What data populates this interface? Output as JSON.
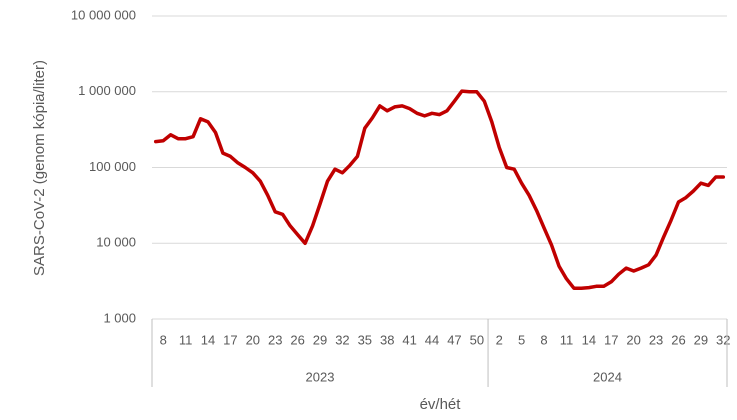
{
  "chart_data": {
    "type": "line",
    "y_label": "SARS-CoV-2 (genom kópia/liter)",
    "x_label": "év/hét",
    "log_scale": true,
    "grid": true,
    "ylim": [
      1000,
      10000000
    ],
    "yticks": [
      {
        "value": 1000,
        "label": "1 000"
      },
      {
        "value": 10000,
        "label": "10 000"
      },
      {
        "value": 100000,
        "label": "100 000"
      },
      {
        "value": 1000000,
        "label": "1 000 000"
      },
      {
        "value": 10000000,
        "label": "10 000 000"
      }
    ],
    "groups": [
      {
        "name": "2023",
        "span": 45
      },
      {
        "name": "2024",
        "span": 32
      }
    ],
    "categories": [
      null,
      "8",
      null,
      null,
      "11",
      null,
      null,
      "14",
      null,
      null,
      "17",
      null,
      null,
      "20",
      null,
      null,
      "23",
      null,
      null,
      "26",
      null,
      null,
      "29",
      null,
      null,
      "32",
      null,
      null,
      "35",
      null,
      null,
      "38",
      null,
      null,
      "41",
      null,
      null,
      "44",
      null,
      null,
      "47",
      null,
      null,
      "50",
      null,
      null,
      "2",
      null,
      null,
      "5",
      null,
      null,
      "8",
      null,
      null,
      "11",
      null,
      null,
      "14",
      null,
      null,
      "17",
      null,
      null,
      "20",
      null,
      null,
      "23",
      null,
      null,
      "26",
      null,
      null,
      "29",
      null,
      null,
      "32"
    ],
    "series": [
      {
        "name": "SARS-CoV-2",
        "color": "#c00000",
        "values": [
          220000,
          225000,
          270000,
          240000,
          240000,
          255000,
          440000,
          400000,
          290000,
          155000,
          140000,
          115000,
          100000,
          85000,
          66000,
          43000,
          26000,
          24000,
          17000,
          13000,
          10000,
          17000,
          33000,
          66000,
          95000,
          85000,
          107000,
          140000,
          330000,
          450000,
          650000,
          560000,
          630000,
          650000,
          600000,
          520000,
          480000,
          520000,
          500000,
          560000,
          750000,
          1020000,
          1000000,
          1000000,
          750000,
          400000,
          185000,
          100000,
          95000,
          62000,
          43000,
          27000,
          16000,
          9500,
          5000,
          3400,
          2550,
          2550,
          2600,
          2700,
          2700,
          3100,
          3900,
          4700,
          4300,
          4700,
          5200,
          7000,
          12000,
          20000,
          35000,
          40000,
          49000,
          62000,
          58000,
          75000,
          75000
        ]
      }
    ]
  }
}
